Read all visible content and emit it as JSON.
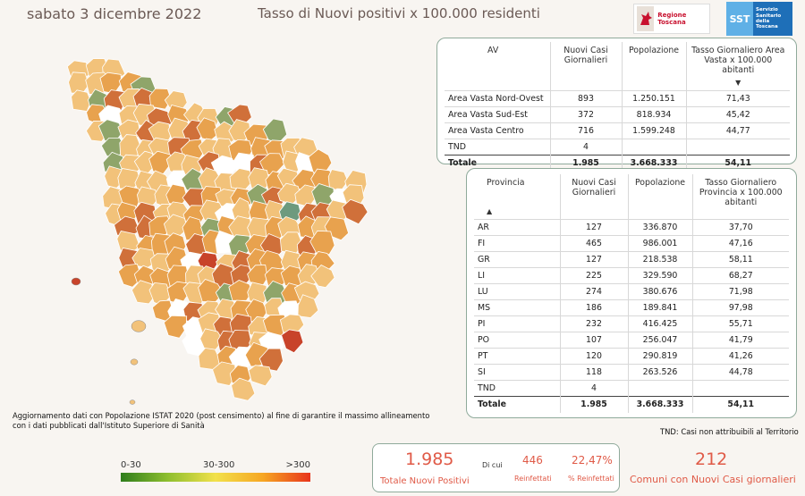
{
  "header": {
    "date": "sabato 3 dicembre 2022",
    "title": "Tasso di Nuovi positivi x 100.000 residenti"
  },
  "logos": {
    "regione": "Regione Toscana",
    "sst_mark": "SST",
    "sst_line1": "Servizio",
    "sst_line2": "Sanitario",
    "sst_line3": "della",
    "sst_line4": "Toscana"
  },
  "av_table": {
    "headers": [
      "AV",
      "Nuovi Casi Giornalieri",
      "Popolazione",
      "Tasso Giornaliero Area Vasta x 100.000 abitanti"
    ],
    "sort_icon": "sort-desc-icon",
    "rows": [
      [
        "Area Vasta Nord-Ovest",
        "893",
        "1.250.151",
        "71,43"
      ],
      [
        "Area Vasta Sud-Est",
        "372",
        "818.934",
        "45,42"
      ],
      [
        "Area Vasta Centro",
        "716",
        "1.599.248",
        "44,77"
      ],
      [
        "TND",
        "4",
        "",
        ""
      ]
    ],
    "total": [
      "Totale",
      "1.985",
      "3.668.333",
      "54,11"
    ]
  },
  "prov_table": {
    "headers": [
      "Provincia",
      "Nuovi Casi Giornalieri",
      "Popolazione",
      "Tasso Giornaliero Provincia x 100.000 abitanti"
    ],
    "sort_icon": "sort-asc-icon",
    "rows": [
      [
        "AR",
        "127",
        "336.870",
        "37,70"
      ],
      [
        "FI",
        "465",
        "986.001",
        "47,16"
      ],
      [
        "GR",
        "127",
        "218.538",
        "58,11"
      ],
      [
        "LI",
        "225",
        "329.590",
        "68,27"
      ],
      [
        "LU",
        "274",
        "380.676",
        "71,98"
      ],
      [
        "MS",
        "186",
        "189.841",
        "97,98"
      ],
      [
        "PI",
        "232",
        "416.425",
        "55,71"
      ],
      [
        "PO",
        "107",
        "256.047",
        "41,79"
      ],
      [
        "PT",
        "120",
        "290.819",
        "41,26"
      ],
      [
        "SI",
        "118",
        "263.526",
        "44,78"
      ],
      [
        "TND",
        "4",
        "",
        ""
      ]
    ],
    "total": [
      "Totale",
      "1.985",
      "3.668.333",
      "54,11"
    ]
  },
  "notes": {
    "istat": "Aggiornamento dati con Popolazione ISTAT 2020 (post censimento) al fine di garantire il massimo allineamento con i dati pubblicati dall'Istituto Superiore di Sanità",
    "tnd": "TND:  Casi non attribuibili al Territorio"
  },
  "legend": {
    "low": "0-30",
    "mid": "30-300",
    "high": ">300",
    "colors": [
      "#2e7d1c",
      "#8fbf2f",
      "#f2e14b",
      "#f6a623",
      "#e8341c"
    ]
  },
  "kpi": {
    "total_value": "1.985",
    "total_label": "Totale Nuovi Positivi",
    "di_cui": "Di cui",
    "reinfettati_value": "446",
    "reinfettati_label": "Reinfettati",
    "perc_value": "22,47%",
    "perc_label": "% Reinfettati"
  },
  "comuni": {
    "value": "212",
    "label": "Comuni con Nuovi Casi giornalieri"
  },
  "map_colors": {
    "light": "#f2c27a",
    "mid": "#e8a24e",
    "dark": "#d0703a",
    "red": "#c8432a",
    "green": "#8fa56a",
    "teal": "#6e9a7e",
    "white": "#ffffff"
  }
}
